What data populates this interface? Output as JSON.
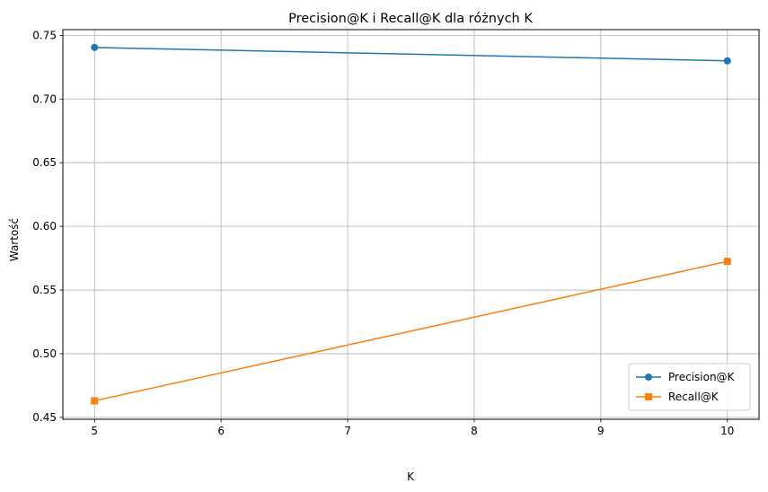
{
  "chart_data": {
    "type": "line",
    "title": "Precision@K i Recall@K dla różnych K",
    "xlabel": "K",
    "ylabel": "Wartość",
    "x": [
      5,
      10
    ],
    "xlim": [
      4.75,
      10.25
    ],
    "ylim": [
      0.4485,
      0.7545
    ],
    "xticks": [
      5,
      6,
      7,
      8,
      9,
      10
    ],
    "yticks": [
      0.45,
      0.5,
      0.55,
      0.6,
      0.65,
      0.7,
      0.75
    ],
    "ytick_labels": [
      "0.45",
      "0.50",
      "0.55",
      "0.60",
      "0.65",
      "0.70",
      "0.75"
    ],
    "grid": true,
    "legend_position": "bottom-right",
    "series": [
      {
        "name": "Precision@K",
        "values": [
          0.7405,
          0.73
        ],
        "color": "#1f77b4",
        "marker": "circle"
      },
      {
        "name": "Recall@K",
        "values": [
          0.463,
          0.5725
        ],
        "color": "#ff7f0e",
        "marker": "square"
      }
    ]
  }
}
